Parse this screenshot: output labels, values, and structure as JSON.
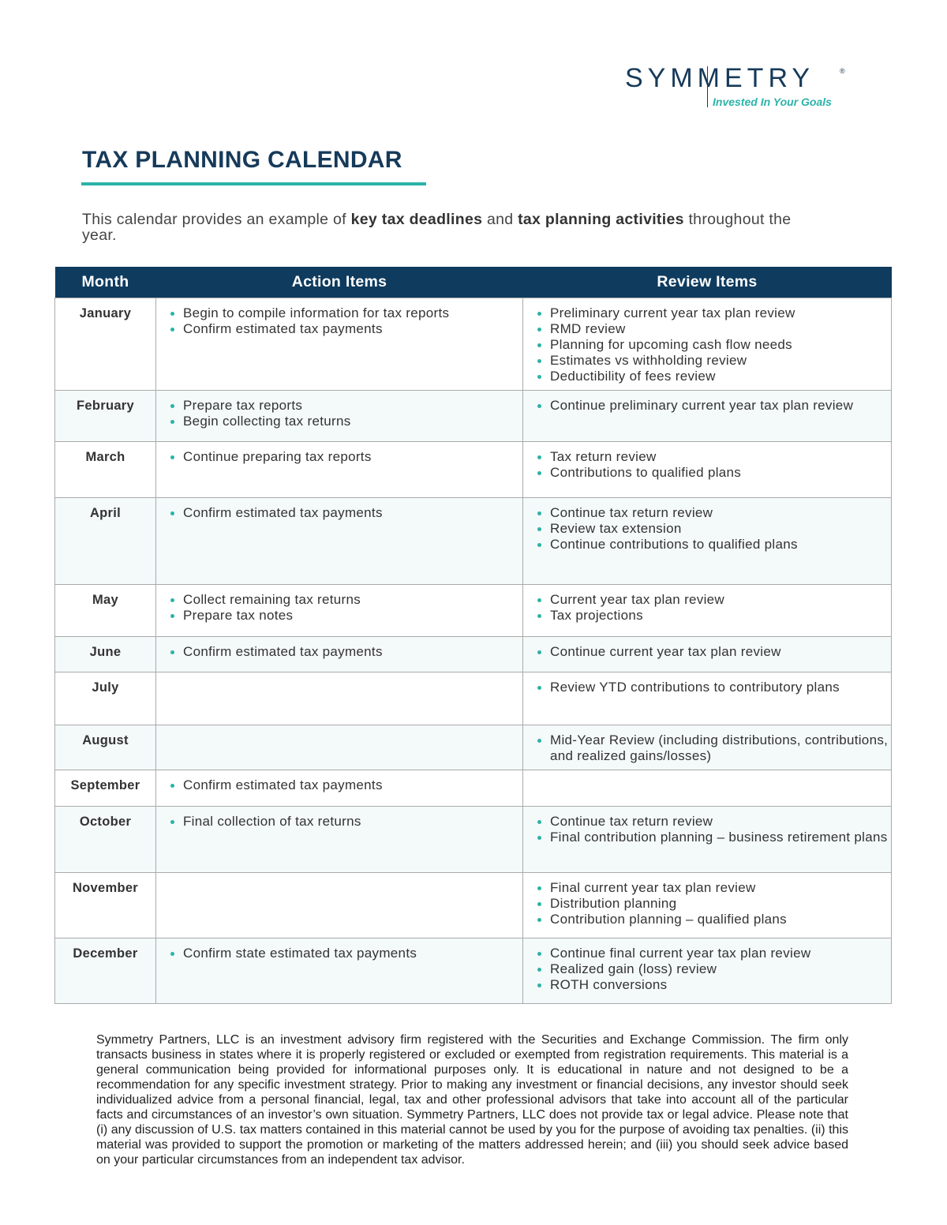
{
  "header": {
    "logo": "SYMMETRY",
    "registered": "®",
    "tagline": "Invested In Your Goals"
  },
  "title": "TAX PLANNING CALENDAR",
  "intro": [
    "This calendar provides an example of ",
    "key tax deadlines",
    " and ",
    "tax planning activities",
    " throughout the year."
  ],
  "table": {
    "columns": [
      "Month",
      "Action Items",
      "Review Items"
    ],
    "rows": [
      {
        "month": "January",
        "actions": [
          "Begin to compile information for tax reports",
          "Confirm estimated tax payments"
        ],
        "reviews": [
          "Preliminary current year tax plan review",
          "RMD review",
          "Planning for upcoming cash flow needs",
          "Estimates vs withholding review",
          "Deductibility of fees review"
        ]
      },
      {
        "month": "February",
        "actions": [
          "Prepare tax reports",
          "Begin collecting tax returns"
        ],
        "reviews": [
          "Continue preliminary current year tax plan review"
        ]
      },
      {
        "month": "March",
        "actions": [
          "Continue preparing tax reports"
        ],
        "reviews": [
          "Tax return review",
          "Contributions to qualified plans"
        ]
      },
      {
        "month": "April",
        "actions": [
          "Confirm estimated tax payments"
        ],
        "reviews": [
          "Continue tax return review",
          "Review tax extension",
          "Continue contributions to qualified plans"
        ]
      },
      {
        "month": "May",
        "actions": [
          "Collect remaining tax returns",
          "Prepare tax notes"
        ],
        "reviews": [
          "Current year tax plan review",
          "Tax projections"
        ]
      },
      {
        "month": "June",
        "actions": [
          "Confirm estimated tax payments"
        ],
        "reviews": [
          "Continue current year tax plan review"
        ]
      },
      {
        "month": "July",
        "actions": [],
        "reviews": [
          "Review YTD contributions to contributory plans"
        ]
      },
      {
        "month": "August",
        "actions": [],
        "reviews": [
          "Mid-Year Review (including distributions, contributions, and realized gains/losses)"
        ]
      },
      {
        "month": "September",
        "actions": [
          "Confirm estimated tax payments"
        ],
        "reviews": []
      },
      {
        "month": "October",
        "actions": [
          "Final collection of tax returns"
        ],
        "reviews": [
          "Continue tax return review",
          "Final contribution planning – business retirement plans"
        ]
      },
      {
        "month": "November",
        "actions": [],
        "reviews": [
          "Final current year tax plan review",
          "Distribution planning",
          "Contribution planning – qualified plans"
        ]
      },
      {
        "month": "December",
        "actions": [
          "Confirm state estimated tax payments"
        ],
        "reviews": [
          "Continue final current year tax plan review",
          "Realized gain (loss) review",
          "ROTH conversions"
        ]
      }
    ]
  },
  "disclaimer": "Symmetry Partners, LLC is an investment advisory firm registered with the Securities and Exchange Commission. The firm only transacts business in states where it is properly registered or excluded or exempted from registration requirements. This material is a general communication being provided for informational purposes only. It is educational in nature and not designed to be a recommendation for any specific investment strategy. Prior to making any investment or financial decisions, any investor should seek individualized advice from a personal financial, legal, tax and other professional advisors that take into account all of the particular facts and circumstances of an investor’s own situation. Symmetry Partners, LLC does not provide tax or legal advice. Please note that (i) any discussion of U.S. tax matters contained in this material cannot be used by you for the purpose of avoiding tax penalties. (ii) this material was provided to support the promotion or marketing of the matters addressed herein; and (iii) you should seek advice based on your particular circumstances from an independent tax advisor."
}
